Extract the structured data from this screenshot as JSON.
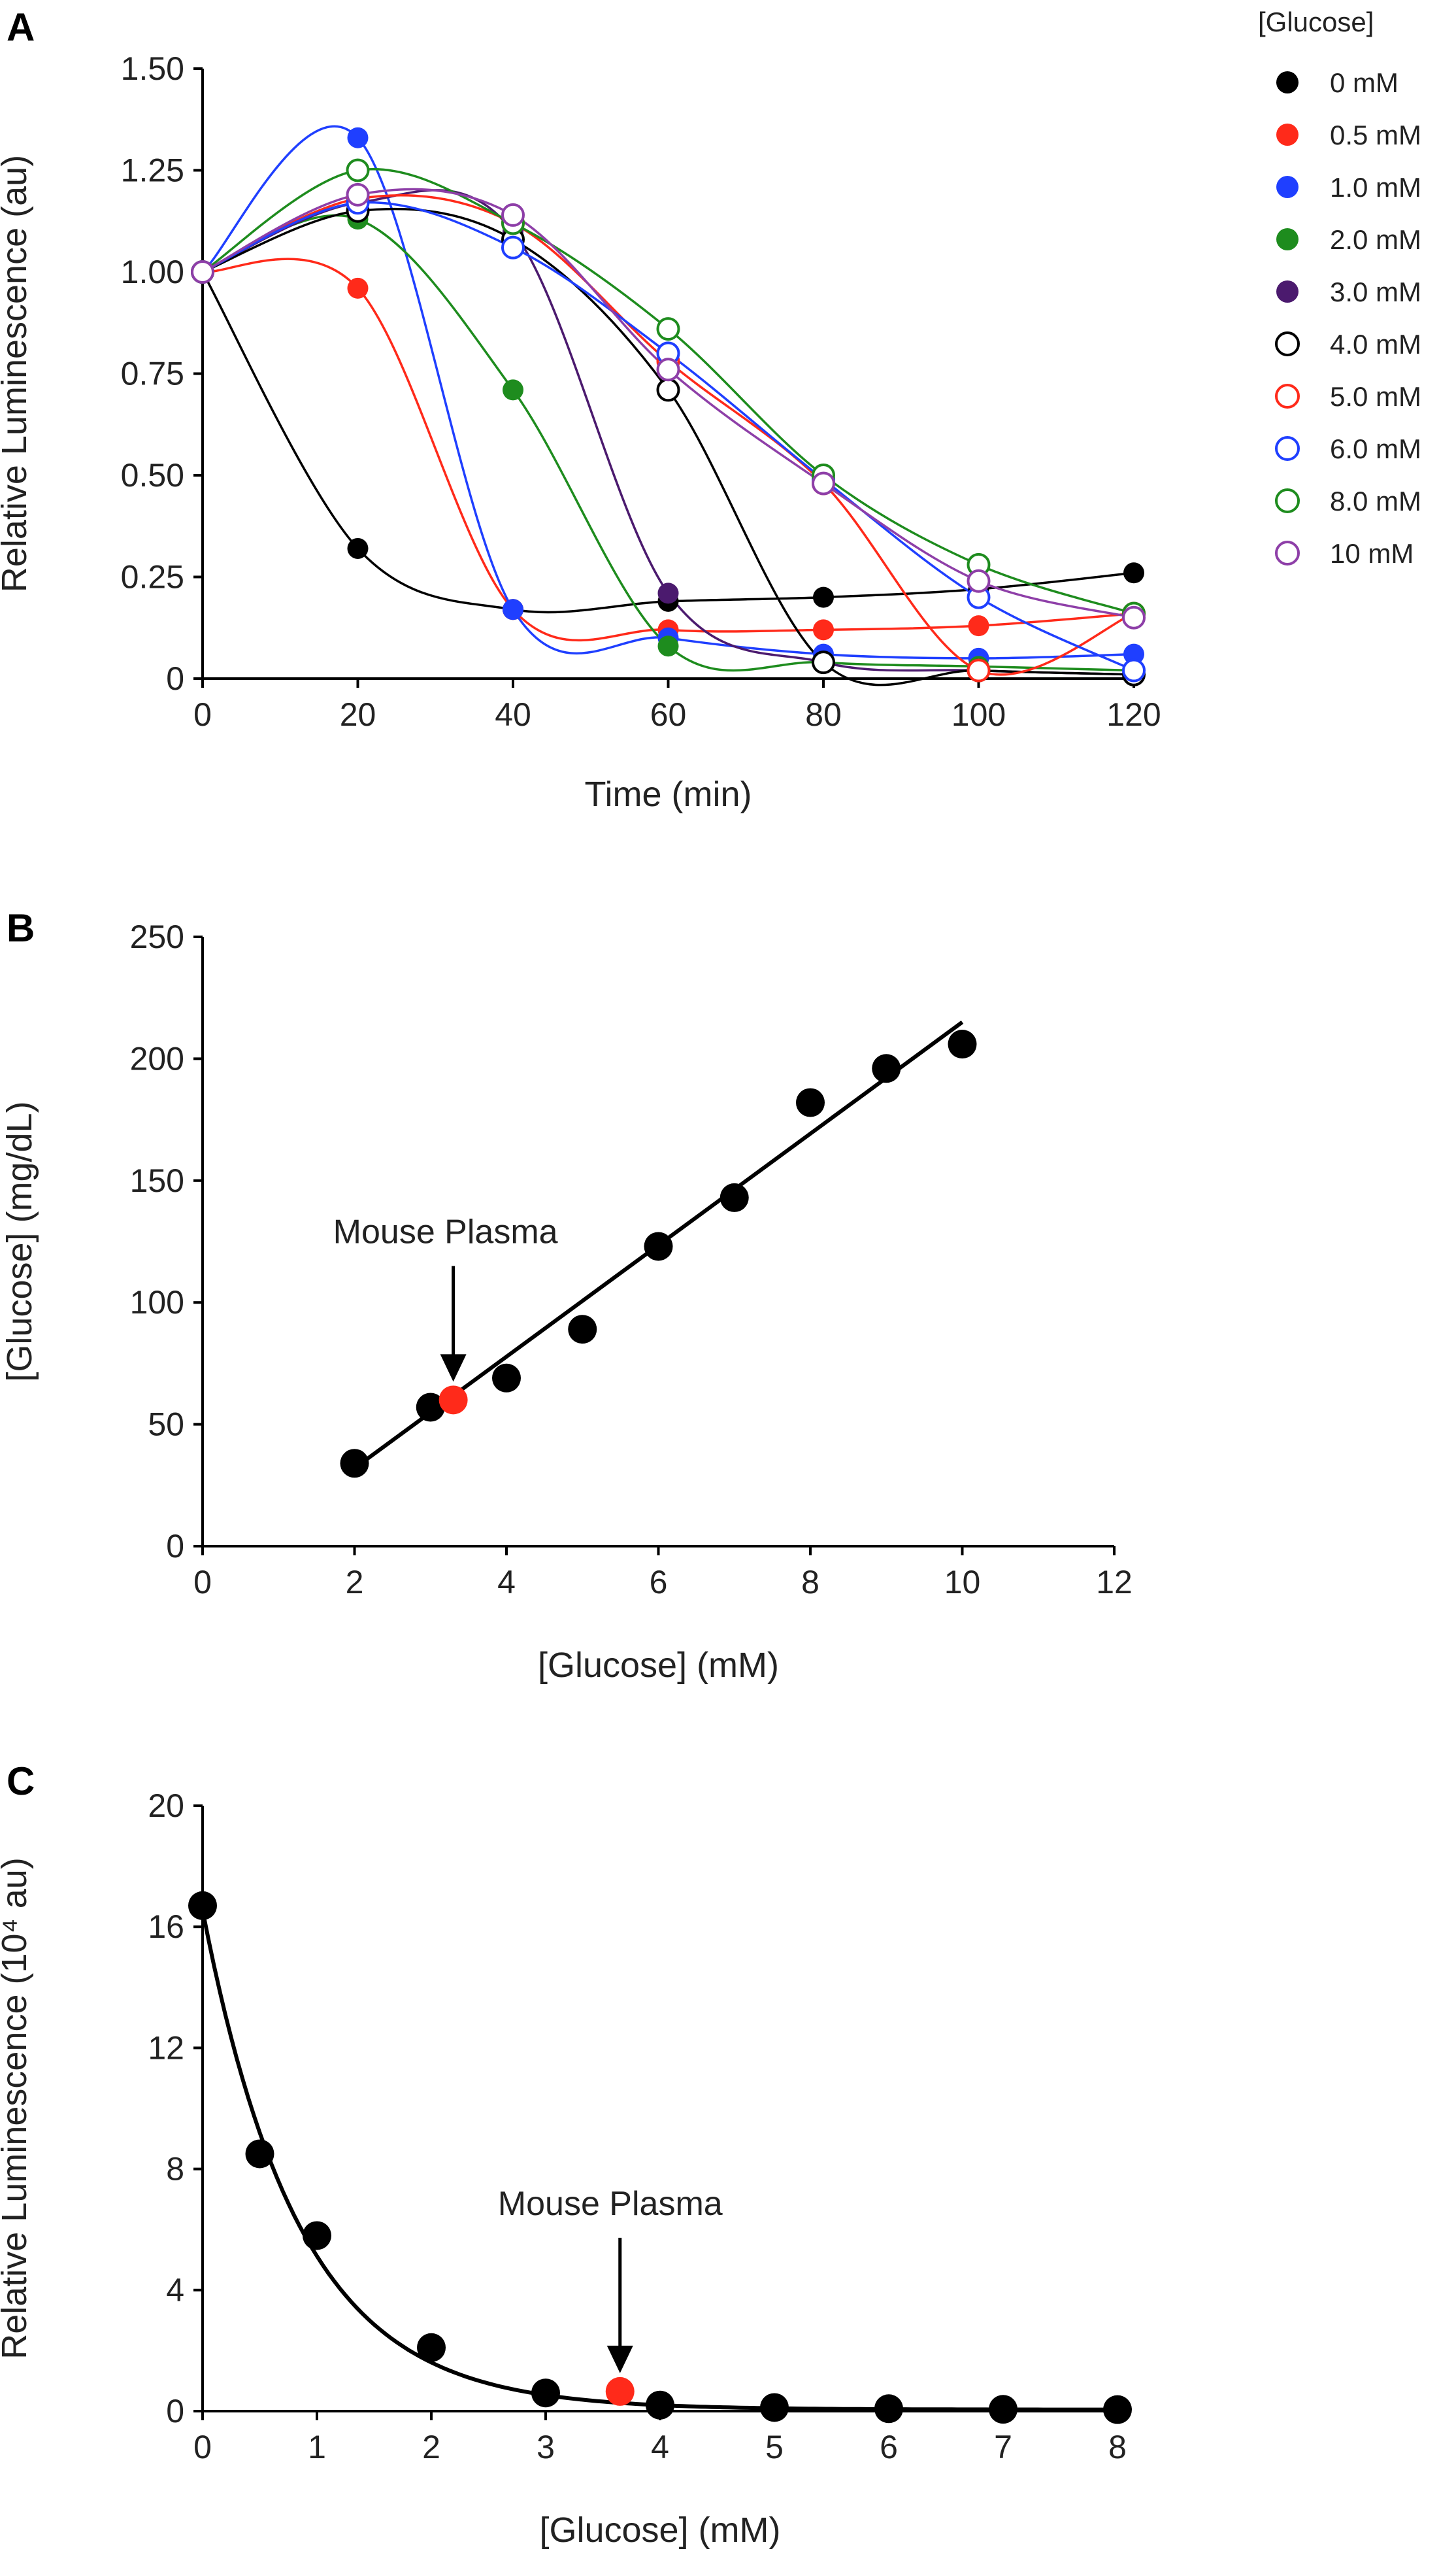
{
  "chart_data": [
    {
      "panel": "A",
      "type": "line",
      "xlabel": "Time (min)",
      "ylabel": "Relative Luminescence (au)",
      "xlim": [
        0,
        120
      ],
      "ylim": [
        0,
        1.5
      ],
      "xticks": [
        0,
        20,
        40,
        60,
        80,
        100,
        120
      ],
      "yticks": [
        0,
        0.25,
        0.5,
        0.75,
        1.0,
        1.25,
        1.5
      ],
      "ytick_labels": [
        "0",
        "0.25",
        "0.50",
        "0.75",
        "1.00",
        "1.25",
        "1.50"
      ],
      "legend_title": "[Glucose]",
      "legend_position": "right",
      "x": [
        0,
        20,
        40,
        60,
        80,
        100,
        120
      ],
      "series": [
        {
          "name": "0 mM",
          "color": "#000000",
          "filled": true,
          "values": [
            1.0,
            0.32,
            0.17,
            0.19,
            0.2,
            0.22,
            0.26
          ]
        },
        {
          "name": "0.5 mM",
          "color": "#ff2a1a",
          "filled": true,
          "values": [
            1.0,
            0.96,
            0.17,
            0.12,
            0.12,
            0.13,
            0.16
          ]
        },
        {
          "name": "1.0 mM",
          "color": "#1f3fff",
          "filled": true,
          "values": [
            1.0,
            1.33,
            0.17,
            0.1,
            0.06,
            0.05,
            0.06
          ]
        },
        {
          "name": "2.0 mM",
          "color": "#1e8c1e",
          "filled": true,
          "values": [
            1.0,
            1.13,
            0.71,
            0.08,
            0.04,
            0.03,
            0.02
          ]
        },
        {
          "name": "3.0 mM",
          "color": "#4b1a6e",
          "filled": true,
          "values": [
            1.0,
            1.17,
            1.1,
            0.21,
            0.04,
            0.02,
            0.01
          ]
        },
        {
          "name": "4.0 mM",
          "color": "#000000",
          "filled": false,
          "values": [
            1.0,
            1.15,
            1.08,
            0.71,
            0.04,
            0.02,
            0.01
          ]
        },
        {
          "name": "5.0 mM",
          "color": "#ff2a1a",
          "filled": false,
          "values": [
            1.0,
            1.18,
            1.12,
            0.78,
            0.48,
            0.02,
            0.16
          ]
        },
        {
          "name": "6.0 mM",
          "color": "#1f3fff",
          "filled": false,
          "values": [
            1.0,
            1.17,
            1.06,
            0.8,
            0.49,
            0.2,
            0.02
          ]
        },
        {
          "name": "8.0 mM",
          "color": "#1e8c1e",
          "filled": false,
          "values": [
            1.0,
            1.25,
            1.12,
            0.86,
            0.5,
            0.28,
            0.16
          ]
        },
        {
          "name": "10 mM",
          "color": "#8e3fa8",
          "filled": false,
          "values": [
            1.0,
            1.19,
            1.14,
            0.76,
            0.48,
            0.24,
            0.15
          ]
        }
      ]
    },
    {
      "panel": "B",
      "type": "scatter",
      "xlabel": "[Glucose] (mM)",
      "ylabel": "[Glucose] (mg/dL)",
      "xlim": [
        0,
        12
      ],
      "ylim": [
        0,
        250
      ],
      "xticks": [
        0,
        2,
        4,
        6,
        8,
        10,
        12
      ],
      "yticks": [
        0,
        50,
        100,
        150,
        200,
        250
      ],
      "points": {
        "x": [
          2,
          3,
          4,
          5,
          6,
          7,
          8,
          9,
          10
        ],
        "y": [
          34,
          57,
          69,
          89,
          123,
          143,
          182,
          196,
          206
        ]
      },
      "highlight": {
        "x": 3.3,
        "y": 60,
        "color": "#ff2a1a"
      },
      "fit_line": {
        "x": [
          2,
          10
        ],
        "y": [
          32,
          215
        ]
      },
      "annotation": {
        "text": "Mouse Plasma",
        "x": 3.3,
        "y": 60
      }
    },
    {
      "panel": "C",
      "type": "scatter",
      "xlabel": "[Glucose] (mM)",
      "ylabel": "Relative Luminescence (10⁴ au)",
      "xlim": [
        0,
        8
      ],
      "ylim": [
        0,
        20
      ],
      "xticks": [
        0,
        1,
        2,
        3,
        4,
        5,
        6,
        7,
        8
      ],
      "yticks": [
        0,
        4,
        8,
        12,
        16,
        20
      ],
      "points": {
        "x": [
          0,
          0.5,
          1,
          2,
          3,
          4,
          5,
          6,
          7,
          8
        ],
        "y": [
          16.7,
          8.5,
          5.8,
          2.1,
          0.6,
          0.2,
          0.12,
          0.08,
          0.06,
          0.05
        ]
      },
      "highlight": {
        "x": 3.65,
        "y": 0.65,
        "color": "#ff2a1a"
      },
      "fit_curve": {
        "model": "exponential_decay",
        "a": 16.5,
        "k": 1.18,
        "c": 0.05
      },
      "annotation": {
        "text": "Mouse Plasma",
        "x": 3.65,
        "y": 0.65
      }
    }
  ]
}
